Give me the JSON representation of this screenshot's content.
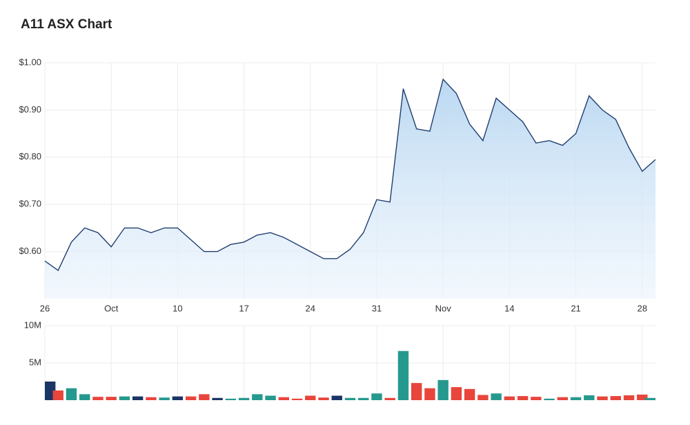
{
  "chart_data": [
    {
      "type": "area",
      "title": "A11 ASX Chart",
      "color": "#1f3d6e",
      "fill": "#bcd9f2",
      "categories": [
        "26",
        null,
        null,
        null,
        null,
        "Oct",
        null,
        null,
        null,
        null,
        "10",
        null,
        null,
        null,
        null,
        "17",
        null,
        null,
        null,
        null,
        "24",
        null,
        null,
        null,
        null,
        "31",
        null,
        null,
        null,
        null,
        "Nov",
        null,
        null,
        null,
        null,
        "14",
        null,
        null,
        null,
        null,
        "21",
        null,
        null,
        null,
        null,
        "28",
        null
      ],
      "values": [
        0.58,
        0.56,
        0.62,
        0.65,
        0.64,
        0.61,
        0.65,
        0.65,
        0.64,
        0.65,
        0.65,
        0.625,
        0.6,
        0.6,
        0.615,
        0.62,
        0.635,
        0.64,
        0.63,
        0.615,
        0.6,
        0.585,
        0.585,
        0.605,
        0.64,
        0.71,
        0.705,
        0.945,
        0.86,
        0.855,
        0.965,
        0.935,
        0.87,
        0.835,
        0.925,
        0.9,
        0.875,
        0.83,
        0.835,
        0.825,
        0.85,
        0.93,
        0.9,
        0.88,
        0.82,
        0.77,
        0.795
      ],
      "ylim": [
        0.5,
        1.0
      ],
      "yticks": [
        {
          "value": 0.6,
          "label": "$0.60"
        },
        {
          "value": 0.7,
          "label": "$0.70"
        },
        {
          "value": 0.8,
          "label": "$0.80"
        },
        {
          "value": 0.9,
          "label": "$0.90"
        },
        {
          "value": 1.0,
          "label": "$1.00"
        }
      ],
      "grid": true
    },
    {
      "type": "bar",
      "values": [
        2500000,
        1300000,
        1600000,
        800000,
        450000,
        450000,
        500000,
        500000,
        400000,
        350000,
        500000,
        500000,
        800000,
        300000,
        200000,
        300000,
        800000,
        600000,
        400000,
        200000,
        600000,
        350000,
        600000,
        300000,
        300000,
        900000,
        300000,
        6600000,
        2300000,
        1600000,
        2700000,
        1750000,
        1500000,
        700000,
        900000,
        500000,
        550000,
        450000,
        200000,
        400000,
        400000,
        650000,
        500000,
        550000,
        650000,
        750000,
        300000
      ],
      "colors": [
        "#1b3566",
        "#e8453c",
        "#26998e",
        "#26998e",
        "#e8453c",
        "#e8453c",
        "#26998e",
        "#1b3566",
        "#e8453c",
        "#26998e",
        "#1b3566",
        "#e8453c",
        "#e8453c",
        "#1b3566",
        "#26998e",
        "#26998e",
        "#26998e",
        "#26998e",
        "#e8453c",
        "#e8453c",
        "#e8453c",
        "#e8453c",
        "#1b3566",
        "#26998e",
        "#26998e",
        "#26998e",
        "#e8453c",
        "#26998e",
        "#e8453c",
        "#e8453c",
        "#26998e",
        "#e8453c",
        "#e8453c",
        "#e8453c",
        "#26998e",
        "#e8453c",
        "#e8453c",
        "#e8453c",
        "#26998e",
        "#e8453c",
        "#26998e",
        "#26998e",
        "#e8453c",
        "#e8453c",
        "#e8453c",
        "#e8453c",
        "#26998e"
      ],
      "ylim": [
        0,
        10000000
      ],
      "yticks": [
        {
          "value": 5000000,
          "label": "5M"
        },
        {
          "value": 10000000,
          "label": "10M"
        }
      ],
      "grid": true
    }
  ]
}
